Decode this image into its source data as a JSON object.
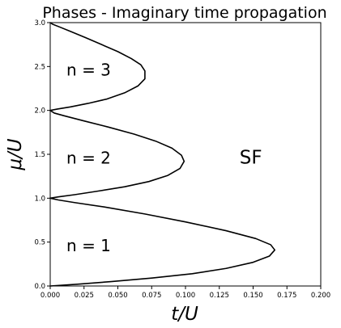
{
  "chart_data": {
    "type": "line",
    "title": "Phases - Imaginary time propagation",
    "xlabel": "t/U",
    "ylabel": "μ/U",
    "xlim": [
      0.0,
      0.2
    ],
    "ylim": [
      0.0,
      3.0
    ],
    "x_ticks": [
      "0.000",
      "0.025",
      "0.050",
      "0.075",
      "0.100",
      "0.125",
      "0.150",
      "0.175",
      "0.200"
    ],
    "y_ticks": [
      "0.0",
      "0.5",
      "1.0",
      "1.5",
      "2.0",
      "2.5",
      "3.0"
    ],
    "grid": false,
    "legend": "none",
    "line_color": "#000000",
    "annotations": [
      {
        "text": "n = 1",
        "x": 0.012,
        "y": 0.47
      },
      {
        "text": "n = 2",
        "x": 0.012,
        "y": 1.47
      },
      {
        "text": "n = 3",
        "x": 0.012,
        "y": 2.47
      },
      {
        "text": "SF",
        "x": 0.14,
        "y": 1.47
      }
    ],
    "series": [
      {
        "points": [
          [
            0.0,
            0.0
          ],
          [
            0.02,
            0.02
          ],
          [
            0.045,
            0.05
          ],
          [
            0.075,
            0.09
          ],
          [
            0.105,
            0.14
          ],
          [
            0.13,
            0.2
          ],
          [
            0.15,
            0.27
          ],
          [
            0.162,
            0.34
          ],
          [
            0.166,
            0.41
          ],
          [
            0.163,
            0.47
          ],
          [
            0.152,
            0.54
          ],
          [
            0.13,
            0.63
          ],
          [
            0.1,
            0.73
          ],
          [
            0.07,
            0.82
          ],
          [
            0.04,
            0.9
          ],
          [
            0.018,
            0.95
          ],
          [
            0.006,
            0.98
          ],
          [
            0.0,
            1.0
          ]
        ]
      },
      {
        "points": [
          [
            0.0,
            1.0
          ],
          [
            0.006,
            1.015
          ],
          [
            0.018,
            1.04
          ],
          [
            0.035,
            1.08
          ],
          [
            0.055,
            1.13
          ],
          [
            0.073,
            1.19
          ],
          [
            0.087,
            1.26
          ],
          [
            0.096,
            1.34
          ],
          [
            0.099,
            1.42
          ],
          [
            0.097,
            1.49
          ],
          [
            0.09,
            1.57
          ],
          [
            0.078,
            1.65
          ],
          [
            0.062,
            1.73
          ],
          [
            0.043,
            1.81
          ],
          [
            0.025,
            1.88
          ],
          [
            0.01,
            1.94
          ],
          [
            0.003,
            1.97
          ],
          [
            0.0,
            2.0
          ]
        ]
      },
      {
        "points": [
          [
            0.0,
            2.0
          ],
          [
            0.005,
            2.015
          ],
          [
            0.015,
            2.04
          ],
          [
            0.028,
            2.08
          ],
          [
            0.042,
            2.13
          ],
          [
            0.055,
            2.2
          ],
          [
            0.065,
            2.28
          ],
          [
            0.07,
            2.36
          ],
          [
            0.07,
            2.45
          ],
          [
            0.067,
            2.52
          ],
          [
            0.06,
            2.59
          ],
          [
            0.05,
            2.67
          ],
          [
            0.038,
            2.75
          ],
          [
            0.026,
            2.83
          ],
          [
            0.015,
            2.9
          ],
          [
            0.007,
            2.95
          ],
          [
            0.002,
            2.98
          ],
          [
            0.0,
            3.0
          ]
        ]
      }
    ]
  }
}
